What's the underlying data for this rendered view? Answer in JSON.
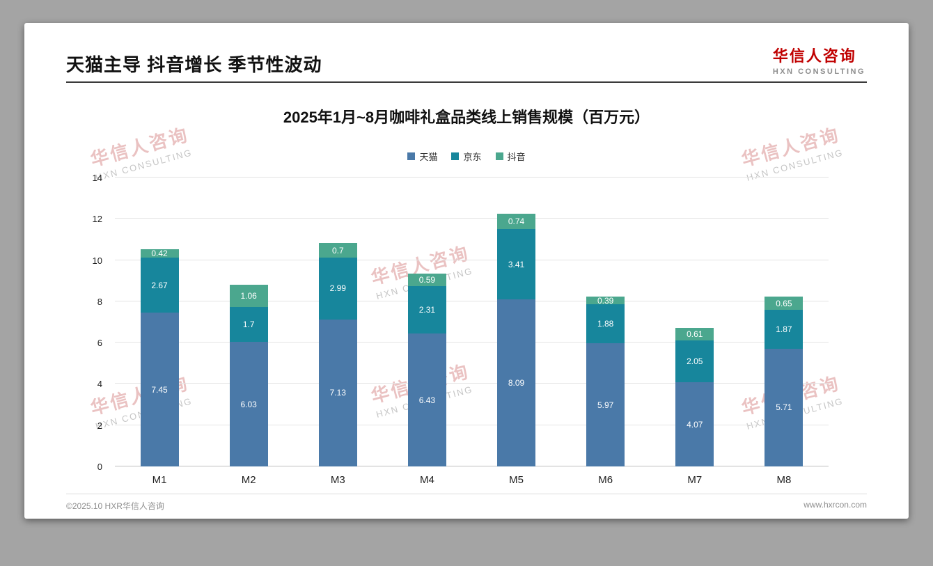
{
  "page": {
    "title": "天猫主导 抖音增长 季节性波动",
    "logo": {
      "cn": "华信人咨询",
      "en": "HXN CONSULTING",
      "color": "#c00000"
    },
    "watermark": {
      "cn": "华信人咨询",
      "en": "HXN CONSULTING"
    },
    "footer": {
      "left": "©2025.10 HXR华信人咨询",
      "right": "www.hxrcon.com"
    }
  },
  "chart_data": {
    "type": "bar",
    "stacked": true,
    "title": "2025年1月~8月咖啡礼盒品类线上销售规模（百万元）",
    "categories": [
      "M1",
      "M2",
      "M3",
      "M4",
      "M5",
      "M6",
      "M7",
      "M8"
    ],
    "series": [
      {
        "name": "天猫",
        "color": "#4a79a8",
        "values": [
          7.45,
          6.03,
          7.13,
          6.43,
          8.09,
          5.97,
          4.07,
          5.71
        ]
      },
      {
        "name": "京东",
        "color": "#17869c",
        "values": [
          2.67,
          1.7,
          2.99,
          2.31,
          3.41,
          1.88,
          2.05,
          1.87
        ]
      },
      {
        "name": "抖音",
        "color": "#4ba78e",
        "values": [
          0.42,
          1.06,
          0.7,
          0.59,
          0.74,
          0.39,
          0.61,
          0.65
        ]
      }
    ],
    "ylim": [
      0,
      14
    ],
    "yticks": [
      0,
      2,
      4,
      6,
      8,
      10,
      12,
      14
    ],
    "grid": true,
    "legend_position": "top"
  }
}
